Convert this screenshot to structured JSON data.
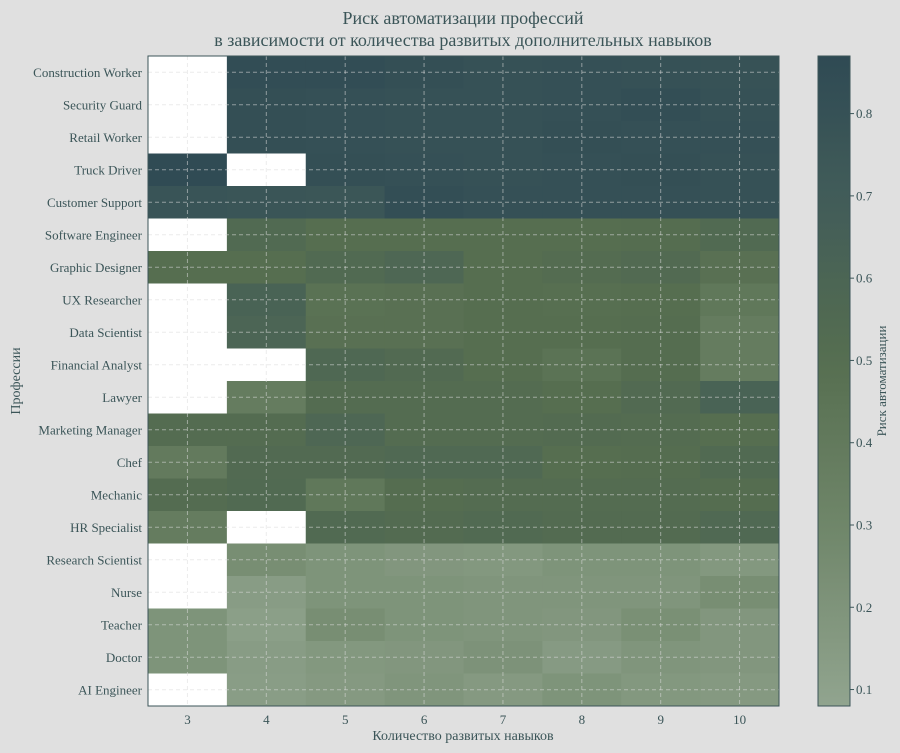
{
  "chart_data": {
    "type": "heatmap",
    "title": "Риск автоматизации профессий",
    "subtitle": "в зависимости от количества развитых дополнительных навыков",
    "xlabel": "Количество развитых навыков",
    "ylabel": "Профессии",
    "colorbar_label": "Риск автоматизации",
    "colorbar_ticks": [
      "0.1",
      "0.2",
      "0.3",
      "0.4",
      "0.5",
      "0.6",
      "0.7",
      "0.8"
    ],
    "colorbar_range": [
      0.08,
      0.87
    ],
    "colormap": {
      "stops": [
        [
          0.08,
          "#91a48f"
        ],
        [
          0.3,
          "#6f8669"
        ],
        [
          0.5,
          "#566e50"
        ],
        [
          0.7,
          "#415c59"
        ],
        [
          0.87,
          "#2f4a54"
        ]
      ],
      "missing": "#ffffff"
    },
    "x": [
      "3",
      "4",
      "5",
      "6",
      "7",
      "8",
      "9",
      "10"
    ],
    "y": [
      "Construction Worker",
      "Security Guard",
      "Retail Worker",
      "Truck Driver",
      "Customer Support",
      "Software Engineer",
      "Graphic Designer",
      "UX Researcher",
      "Data Scientist",
      "Financial Analyst",
      "Lawyer",
      "Marketing Manager",
      "Chef",
      "Mechanic",
      "HR Specialist",
      "Research Scientist",
      "Nurse",
      "Teacher",
      "Doctor",
      "AI Engineer"
    ],
    "values": [
      [
        null,
        0.84,
        0.84,
        0.82,
        0.8,
        0.81,
        0.8,
        0.79
      ],
      [
        null,
        0.82,
        0.81,
        0.8,
        0.8,
        0.81,
        0.83,
        0.8
      ],
      [
        null,
        0.82,
        0.81,
        0.8,
        0.8,
        0.82,
        0.81,
        0.81
      ],
      [
        0.86,
        null,
        0.82,
        0.81,
        0.8,
        0.81,
        0.82,
        0.8
      ],
      [
        0.78,
        0.77,
        0.76,
        0.83,
        0.81,
        0.81,
        0.81,
        0.8
      ],
      [
        null,
        0.55,
        0.5,
        0.5,
        0.5,
        0.5,
        0.51,
        0.55
      ],
      [
        0.5,
        0.5,
        0.55,
        0.58,
        0.5,
        0.52,
        0.54,
        0.48
      ],
      [
        null,
        0.62,
        0.47,
        0.48,
        0.5,
        0.49,
        0.5,
        0.42
      ],
      [
        null,
        0.6,
        0.48,
        0.48,
        0.5,
        0.5,
        0.51,
        0.38
      ],
      [
        null,
        null,
        0.57,
        0.54,
        0.5,
        0.46,
        0.51,
        0.38
      ],
      [
        null,
        0.38,
        0.52,
        0.52,
        0.52,
        0.5,
        0.54,
        0.62
      ],
      [
        0.52,
        0.52,
        0.58,
        0.52,
        0.52,
        0.53,
        0.52,
        0.5
      ],
      [
        0.4,
        0.54,
        0.54,
        0.56,
        0.56,
        0.5,
        0.51,
        0.55
      ],
      [
        0.52,
        0.55,
        0.42,
        0.51,
        0.52,
        0.52,
        0.52,
        0.51
      ],
      [
        0.38,
        null,
        0.55,
        0.53,
        0.55,
        0.53,
        0.53,
        0.56
      ],
      [
        null,
        0.24,
        0.2,
        0.18,
        0.17,
        0.2,
        0.2,
        0.17
      ],
      [
        null,
        0.14,
        0.2,
        0.2,
        0.19,
        0.19,
        0.19,
        0.24
      ],
      [
        0.2,
        0.12,
        0.24,
        0.2,
        0.19,
        0.18,
        0.23,
        0.18
      ],
      [
        0.2,
        0.14,
        0.17,
        0.18,
        0.21,
        0.15,
        0.19,
        0.18
      ],
      [
        null,
        0.13,
        0.16,
        0.19,
        0.16,
        0.2,
        0.17,
        0.16
      ]
    ],
    "grid": true
  }
}
